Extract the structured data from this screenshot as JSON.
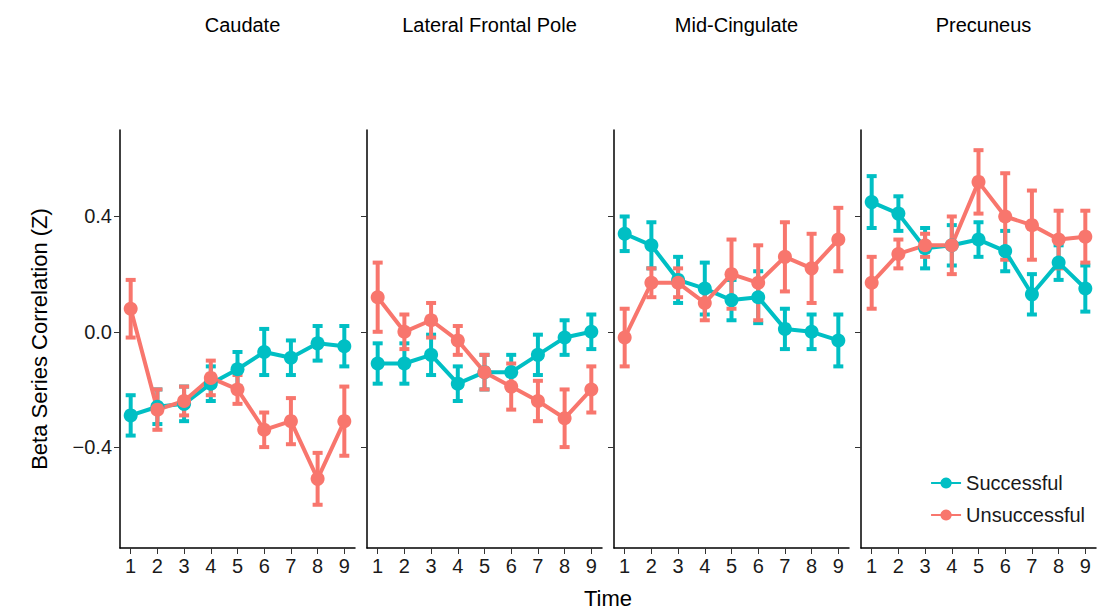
{
  "chart_data": {
    "type": "line",
    "y_label": "Beta Series Correlation (Z)",
    "x_label": "Time",
    "legend": "bottom-right",
    "grid": false,
    "marker": "circle",
    "line_style": "solid",
    "panels": [
      {
        "title": "Caudate",
        "x": [
          1,
          2,
          3,
          4,
          5,
          6,
          7,
          8,
          9
        ],
        "xlim": [
          0.6,
          9.4
        ],
        "xticks": [
          1,
          2,
          3,
          4,
          5,
          6,
          7,
          8,
          9
        ],
        "ylim": [
          -0.75,
          0.7
        ],
        "yticks": [
          {
            "value": -0.4,
            "label": "−0.4"
          },
          {
            "value": 0,
            "label": "0.0"
          },
          0.4
        ],
        "series": [
          {
            "name": "Successful",
            "color": "#00BFC4",
            "values": [
              -0.29,
              -0.26,
              -0.25,
              -0.18,
              -0.13,
              -0.07,
              -0.09,
              -0.04,
              -0.05
            ],
            "errors": [
              0.07,
              0.06,
              0.06,
              0.06,
              0.06,
              0.08,
              0.06,
              0.06,
              0.07
            ]
          },
          {
            "name": "Unsuccessful",
            "color": "#F8766D",
            "values": [
              0.08,
              -0.27,
              -0.24,
              -0.16,
              -0.2,
              -0.34,
              -0.31,
              -0.51,
              -0.31
            ],
            "errors": [
              0.1,
              0.07,
              0.05,
              0.06,
              0.05,
              0.06,
              0.08,
              0.09,
              0.12
            ]
          }
        ]
      },
      {
        "title": "Lateral Frontal Pole",
        "tick_labels": "x",
        "x": [
          1,
          2,
          3,
          4,
          5,
          6,
          7,
          8,
          9
        ],
        "xlim": [
          0.6,
          9.4
        ],
        "xticks": [
          1,
          2,
          3,
          4,
          5,
          6,
          7,
          8,
          9
        ],
        "ylim": [
          -0.75,
          0.7
        ],
        "yticks": [
          {
            "value": -0.4,
            "label": "−0.4"
          },
          {
            "value": 0,
            "label": "0.0"
          },
          0.4
        ],
        "series": [
          {
            "name": "Successful",
            "color": "#00BFC4",
            "values": [
              -0.11,
              -0.11,
              -0.08,
              -0.18,
              -0.14,
              -0.14,
              -0.08,
              -0.02,
              0.0
            ],
            "errors": [
              0.07,
              0.07,
              0.07,
              0.06,
              0.06,
              0.06,
              0.07,
              0.06,
              0.06
            ]
          },
          {
            "name": "Unsuccessful",
            "color": "#F8766D",
            "values": [
              0.12,
              0.0,
              0.04,
              -0.03,
              -0.14,
              -0.19,
              -0.24,
              -0.3,
              -0.2
            ],
            "errors": [
              0.12,
              0.06,
              0.06,
              0.05,
              0.06,
              0.08,
              0.07,
              0.1,
              0.08
            ]
          }
        ]
      },
      {
        "title": "Mid-Cingulate",
        "tick_labels": "x",
        "x": [
          1,
          2,
          3,
          4,
          5,
          6,
          7,
          8,
          9
        ],
        "xlim": [
          0.6,
          9.4
        ],
        "xticks": [
          1,
          2,
          3,
          4,
          5,
          6,
          7,
          8,
          9
        ],
        "ylim": [
          -0.75,
          0.7
        ],
        "yticks": [
          {
            "value": -0.4,
            "label": "−0.4"
          },
          {
            "value": 0,
            "label": "0.0"
          },
          0.4
        ],
        "series": [
          {
            "name": "Successful",
            "color": "#00BFC4",
            "values": [
              0.34,
              0.3,
              0.18,
              0.15,
              0.11,
              0.12,
              0.01,
              0.0,
              -0.03
            ],
            "errors": [
              0.06,
              0.08,
              0.08,
              0.09,
              0.07,
              0.09,
              0.07,
              0.06,
              0.09
            ]
          },
          {
            "name": "Unsuccessful",
            "color": "#F8766D",
            "values": [
              -0.02,
              0.17,
              0.17,
              0.1,
              0.2,
              0.17,
              0.26,
              0.22,
              0.32
            ],
            "errors": [
              0.1,
              0.05,
              0.05,
              0.06,
              0.12,
              0.13,
              0.12,
              0.12,
              0.11
            ]
          }
        ]
      },
      {
        "title": "Precuneus",
        "tick_labels": "x",
        "x": [
          1,
          2,
          3,
          4,
          5,
          6,
          7,
          8,
          9
        ],
        "xlim": [
          0.6,
          9.4
        ],
        "xticks": [
          1,
          2,
          3,
          4,
          5,
          6,
          7,
          8,
          9
        ],
        "ylim": [
          -0.75,
          0.7
        ],
        "yticks": [
          {
            "value": -0.4,
            "label": "−0.4"
          },
          {
            "value": 0,
            "label": "0.0"
          },
          0.4
        ],
        "series": [
          {
            "name": "Successful",
            "color": "#00BFC4",
            "values": [
              0.45,
              0.41,
              0.29,
              0.3,
              0.32,
              0.28,
              0.13,
              0.24,
              0.15
            ],
            "errors": [
              0.09,
              0.06,
              0.07,
              0.07,
              0.06,
              0.07,
              0.07,
              0.06,
              0.08
            ]
          },
          {
            "name": "Unsuccessful",
            "color": "#F8766D",
            "values": [
              0.17,
              0.27,
              0.3,
              0.3,
              0.52,
              0.4,
              0.37,
              0.32,
              0.33
            ],
            "errors": [
              0.09,
              0.05,
              0.04,
              0.1,
              0.11,
              0.15,
              0.12,
              0.1,
              0.09
            ]
          }
        ]
      }
    ]
  }
}
